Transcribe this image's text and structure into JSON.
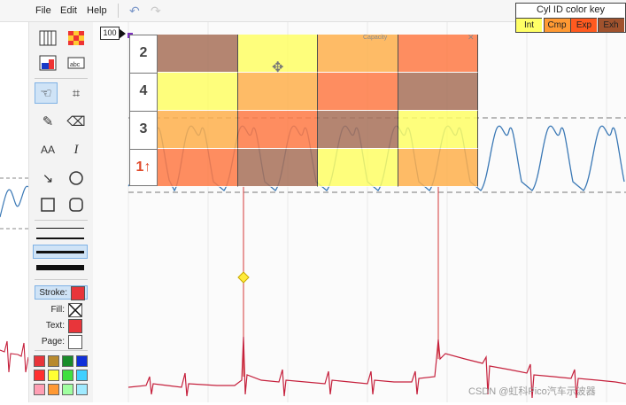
{
  "menu": {
    "file": "File",
    "edit": "Edit",
    "help": "Help"
  },
  "toolbar": {
    "undo_icon": "undo-arrow",
    "redo_icon": "redo-arrow"
  },
  "color_key": {
    "title": "Cyl ID color key",
    "items": [
      {
        "label": "Int",
        "color": "#ffff66"
      },
      {
        "label": "Cmp",
        "color": "#ff9933"
      },
      {
        "label": "Exp",
        "color": "#ff5a1f"
      },
      {
        "label": "Exh",
        "color": "#a0522d"
      }
    ]
  },
  "zoom_label": "100",
  "cylinders": {
    "labels": [
      "2",
      "4",
      "3",
      "1↑"
    ],
    "overlay_label": "Capacity",
    "rows": [
      [
        "#a8715a",
        "#ffff66",
        "#ffb04d",
        "#ff7a45"
      ],
      [
        "#ffff66",
        "#ffb04d",
        "#ff7a45",
        "#a8715a"
      ],
      [
        "#ffb04d",
        "#ff7a45",
        "#a8715a",
        "#ffff66"
      ],
      [
        "#ff7a45",
        "#a8715a",
        "#ffff66",
        "#ffb04d"
      ]
    ]
  },
  "palette": {
    "stroke_label": "Stroke:",
    "fill_label": "Fill:",
    "text_label": "Text:",
    "page_label": "Page:",
    "stroke_color": "#e8353a",
    "text_color": "#e8353a",
    "page_color": "#ffffff",
    "swatches": [
      "#e8353a",
      "#b88a2e",
      "#1a8c2a",
      "#1030d8",
      "#ff3030",
      "#ffff33",
      "#40e040",
      "#40d0ff",
      "#ff9fb4",
      "#ff9933",
      "#a0ffa0",
      "#a0eaff"
    ]
  },
  "watermark": "CSDN @虹科Pico汽车示波器"
}
